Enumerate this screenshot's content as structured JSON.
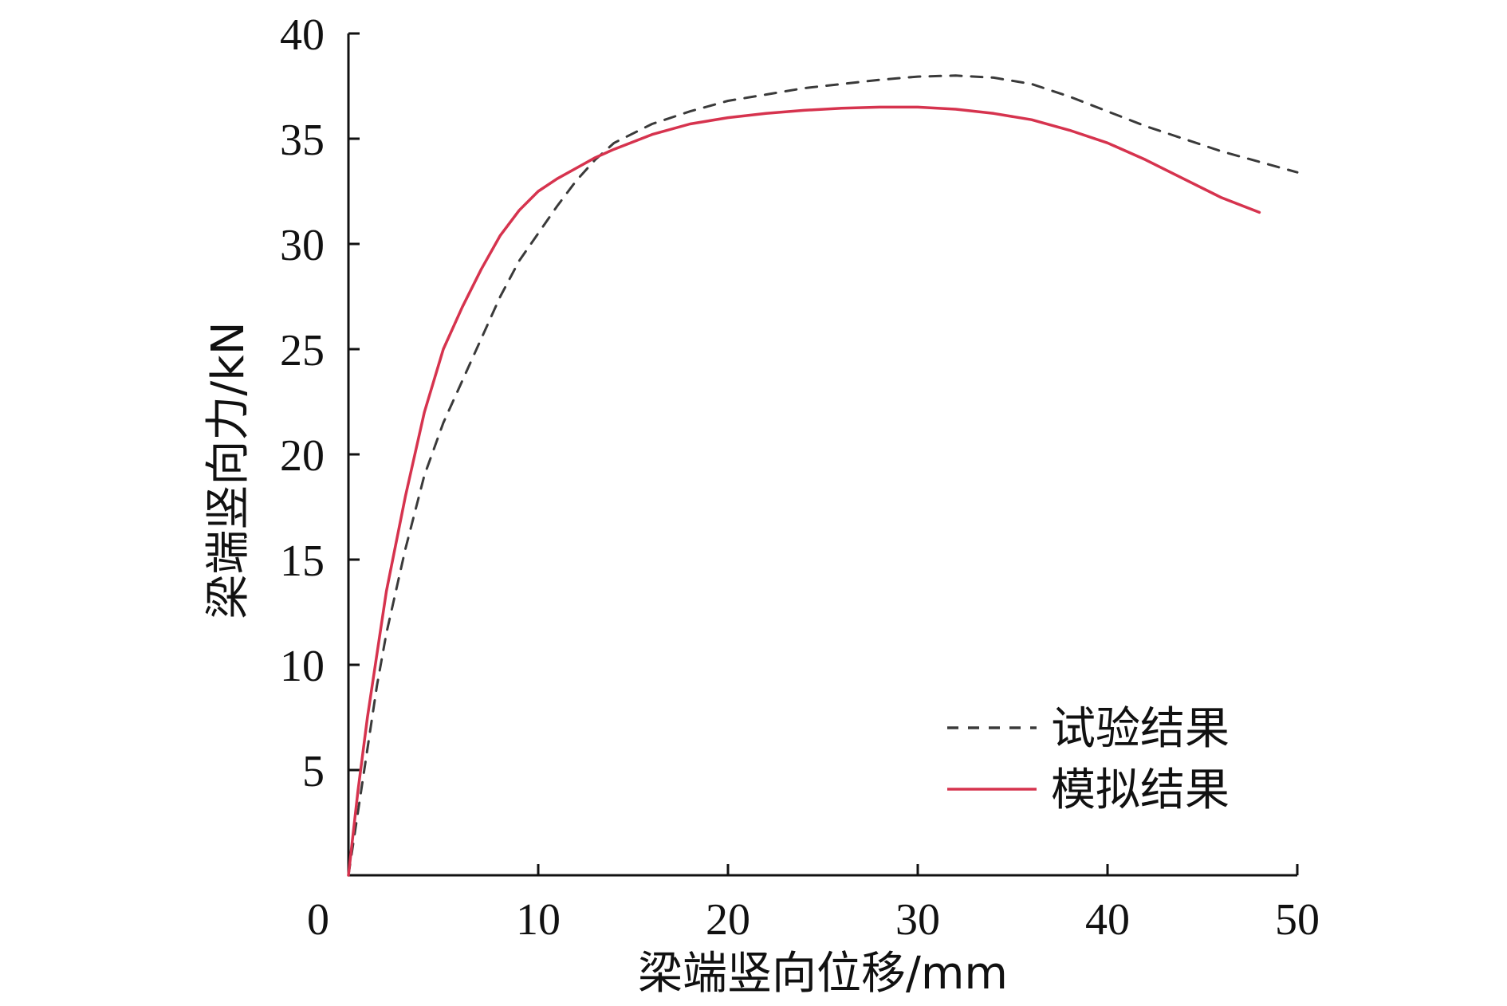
{
  "chart_data": {
    "type": "line",
    "title": "",
    "xlabel": "梁端竖向位移/mm",
    "ylabel": "梁端竖向力/kN",
    "xlim": [
      0,
      50
    ],
    "ylim": [
      0,
      40
    ],
    "xticks": [
      0,
      10,
      20,
      30,
      40,
      50
    ],
    "yticks": [
      5,
      10,
      15,
      20,
      25,
      30,
      35,
      40
    ],
    "grid": false,
    "legend_position": "bottom-right",
    "series": [
      {
        "name": "试验结果",
        "style": "dashed",
        "color": "#3a3a3a",
        "x": [
          0,
          0.5,
          1,
          1.5,
          2,
          3,
          4,
          5,
          6,
          7,
          8,
          9,
          10,
          11,
          12,
          13,
          14,
          16,
          18,
          20,
          22,
          24,
          26,
          28,
          30,
          32,
          34,
          36,
          38,
          40,
          42,
          44,
          46,
          48,
          50
        ],
        "y": [
          0,
          3,
          6,
          9,
          11.5,
          15.5,
          19,
          21.5,
          23.5,
          25.5,
          27.5,
          29.2,
          30.5,
          31.8,
          33,
          34,
          34.8,
          35.7,
          36.3,
          36.8,
          37.1,
          37.4,
          37.6,
          37.8,
          37.95,
          38,
          37.9,
          37.6,
          37,
          36.3,
          35.6,
          35,
          34.4,
          33.9,
          33.4
        ]
      },
      {
        "name": "模拟结果",
        "style": "solid",
        "color": "#d6334e",
        "x": [
          0,
          0.5,
          1,
          2,
          3,
          4,
          5,
          6,
          7,
          8,
          9,
          10,
          11,
          12,
          13,
          14,
          16,
          18,
          20,
          22,
          24,
          26,
          28,
          30,
          32,
          34,
          36,
          38,
          40,
          42,
          44,
          46,
          48
        ],
        "y": [
          0,
          4,
          7.5,
          13.5,
          18,
          22,
          25,
          27,
          28.8,
          30.4,
          31.6,
          32.5,
          33.1,
          33.6,
          34.1,
          34.5,
          35.2,
          35.7,
          36,
          36.2,
          36.35,
          36.45,
          36.5,
          36.5,
          36.4,
          36.2,
          35.9,
          35.4,
          34.8,
          34,
          33.1,
          32.2,
          31.5
        ]
      }
    ]
  }
}
